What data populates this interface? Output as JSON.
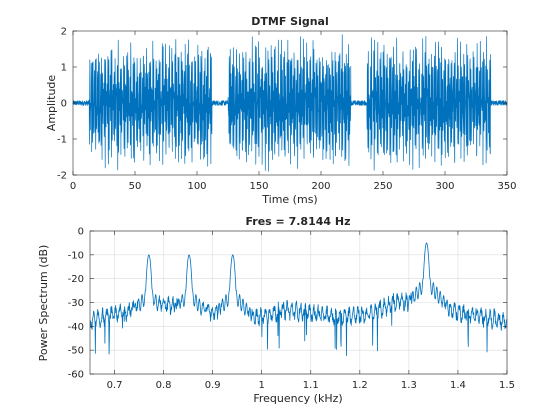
{
  "chart_data": [
    {
      "type": "line",
      "title": "DTMF Signal",
      "xlabel": "Time (ms)",
      "ylabel": "Amplitude",
      "xlim": [
        0,
        350
      ],
      "ylim": [
        -2,
        2
      ],
      "xticks": [
        0,
        50,
        100,
        150,
        200,
        250,
        300,
        350
      ],
      "xtick_labels": [
        "0",
        "50",
        "100",
        "150",
        "200",
        "250",
        "300",
        "350"
      ],
      "yticks": [
        -2,
        -1,
        0,
        1,
        2
      ],
      "ytick_labels": [
        "-2",
        "-1",
        "0",
        "1",
        "2"
      ],
      "grid": false,
      "color": "#0072BD",
      "series": [
        {
          "tone_bursts_ms": [
            [
              13,
              112
            ],
            [
              125,
              224
            ],
            [
              237,
              337
            ]
          ],
          "tone_amplitude_peak": 1.9,
          "noise_amplitude_peak": 0.07
        }
      ]
    },
    {
      "type": "line",
      "title": "Fres = 7.8144 Hz",
      "xlabel": "Frequency (kHz)",
      "ylabel": "Power Spectrum (dB)",
      "xlim": [
        0.65,
        1.5
      ],
      "ylim": [
        -60,
        0
      ],
      "xticks": [
        0.7,
        0.8,
        0.9,
        1.0,
        1.1,
        1.2,
        1.3,
        1.4,
        1.5
      ],
      "xtick_labels": [
        "0.7",
        "0.8",
        "0.9",
        "1",
        "1.1",
        "1.2",
        "1.3",
        "1.4",
        "1.5"
      ],
      "yticks": [
        -60,
        -50,
        -40,
        -30,
        -20,
        -10,
        0
      ],
      "ytick_labels": [
        "-60",
        "-50",
        "-40",
        "-30",
        "-20",
        "-10",
        "0"
      ],
      "grid": true,
      "color": "#0072BD",
      "series": [
        {
          "peaks": [
            {
              "x": 0.77,
              "y": -10
            },
            {
              "x": 0.852,
              "y": -10
            },
            {
              "x": 0.941,
              "y": -10
            },
            {
              "x": 1.336,
              "y": -5
            }
          ],
          "noise_floor": [
            {
              "x": 0.65,
              "y": -38
            },
            {
              "x": 0.72,
              "y": -34
            },
            {
              "x": 0.8,
              "y": -31
            },
            {
              "x": 0.98,
              "y": -37
            },
            {
              "x": 1.05,
              "y": -33
            },
            {
              "x": 1.15,
              "y": -36
            },
            {
              "x": 1.22,
              "y": -35
            },
            {
              "x": 1.28,
              "y": -29
            },
            {
              "x": 1.4,
              "y": -34
            },
            {
              "x": 1.5,
              "y": -38
            }
          ]
        }
      ]
    }
  ]
}
